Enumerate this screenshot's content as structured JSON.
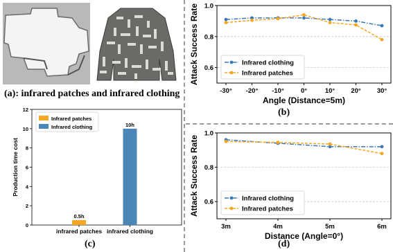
{
  "panel_a": {
    "caption": "(a): infrared patches and infrared clothing",
    "photo_left": "infrared-patch-photo",
    "photo_right": "infrared-clothing-photo"
  },
  "chart_data": [
    {
      "id": "b",
      "type": "line",
      "caption": "(b)",
      "xlabel": "Angle (Distance=5m)",
      "ylabel": "Attack Success Rate",
      "categories": [
        "-30°",
        "-20°",
        "-10°",
        "0°",
        "10°",
        "20°",
        "30°"
      ],
      "ylim": [
        0.5,
        1.0
      ],
      "yticks": [
        "0.6",
        "0.8",
        "1.0"
      ],
      "grid": true,
      "legend_position": "lower-left",
      "series": [
        {
          "name": "Infrared clothing",
          "color": "#3b78b5",
          "style": "dash-dot",
          "marker": "circle",
          "values": [
            0.91,
            0.92,
            0.92,
            0.92,
            0.91,
            0.9,
            0.87
          ]
        },
        {
          "name": "Infrared patches",
          "color": "#f5a623",
          "style": "dashed",
          "marker": "circle",
          "values": [
            0.89,
            0.905,
            0.915,
            0.94,
            0.89,
            0.875,
            0.78
          ]
        }
      ]
    },
    {
      "id": "c",
      "type": "bar",
      "caption": "(c)",
      "xlabel": "",
      "ylabel": "Production time cost",
      "categories": [
        "infrared patches",
        "infrared clothing"
      ],
      "ylim": [
        0,
        12
      ],
      "yticks": [
        "0",
        "2",
        "4",
        "6",
        "8",
        "10",
        "12"
      ],
      "legend_position": "top-left",
      "series": [
        {
          "name": "Infrared patches",
          "color": "#f5a623",
          "values": [
            0.5,
            null
          ]
        },
        {
          "name": "Infrared clothing",
          "color": "#4a86b8",
          "values": [
            null,
            10
          ]
        }
      ],
      "data_labels": [
        "0.5h",
        "10h"
      ]
    },
    {
      "id": "d",
      "type": "line",
      "caption": "(d)",
      "xlabel": "Distance (Angle=0°)",
      "ylabel": "Attack Success Rate",
      "categories": [
        "3m",
        "4m",
        "5m",
        "6m"
      ],
      "ylim": [
        0.5,
        1.0
      ],
      "yticks": [
        "0.6",
        "0.8",
        "1.0"
      ],
      "grid": true,
      "legend_position": "lower-left",
      "series": [
        {
          "name": "Infrared clothing",
          "color": "#3b78b5",
          "style": "dash-dot",
          "marker": "circle",
          "values": [
            0.96,
            0.94,
            0.92,
            0.92
          ]
        },
        {
          "name": "Infrared patches",
          "color": "#f5a623",
          "style": "dashed",
          "marker": "circle",
          "values": [
            0.95,
            0.945,
            0.935,
            0.88
          ]
        }
      ]
    }
  ]
}
